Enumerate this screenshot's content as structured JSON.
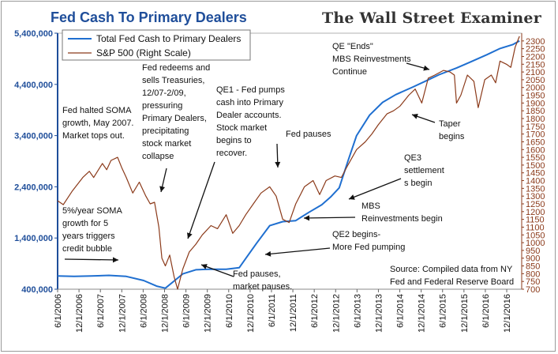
{
  "title": "Fed Cash To Primary Dealers",
  "brand": "The Wall Street Examiner",
  "chart_data": {
    "type": "line",
    "legend": {
      "placement": "top-left"
    },
    "colors": {
      "fed": "#1f6fd0",
      "spx": "#8b3a1a",
      "left_axis": "#1f4e9a",
      "right_axis": "#8b3a1a"
    },
    "x_range": [
      2006.42,
      2017.1
    ],
    "x_ticks": [
      "6/1/2006",
      "12/1/2006",
      "6/1/2007",
      "12/1/2007",
      "6/1/2008",
      "12/1/2008",
      "6/1/2009",
      "12/1/2009",
      "6/1/2010",
      "12/1/2010",
      "6/1/2011",
      "12/1/2011",
      "6/1/2012",
      "12/1/2012",
      "6/1/2013",
      "12/1/2013",
      "6/1/2014",
      "12/1/2014",
      "6/1/2015",
      "12/1/2015",
      "6/1/2016",
      "12/1/2016"
    ],
    "y_left": {
      "min": 400000,
      "max": 5400000,
      "ticks": [
        "400,000",
        "1,400,000",
        "2,400,000",
        "3,400,000",
        "4,400,000",
        "5,400,000"
      ]
    },
    "y_right": {
      "min": 700,
      "max": 2350,
      "ticks": [
        "700",
        "750",
        "800",
        "850",
        "900",
        "950",
        "1000",
        "1050",
        "1100",
        "1150",
        "1200",
        "1250",
        "1300",
        "1350",
        "1400",
        "1450",
        "1500",
        "1550",
        "1600",
        "1650",
        "1700",
        "1750",
        "1800",
        "1850",
        "1900",
        "1950",
        "2000",
        "2050",
        "2100",
        "2150",
        "2200",
        "2250",
        "2300"
      ]
    },
    "series": [
      {
        "name": "Total Fed Cash to Primary Dealers",
        "axis": "left",
        "points": [
          [
            2006.42,
            660000
          ],
          [
            2006.8,
            650000
          ],
          [
            2007.2,
            660000
          ],
          [
            2007.6,
            670000
          ],
          [
            2008.0,
            650000
          ],
          [
            2008.4,
            570000
          ],
          [
            2008.7,
            460000
          ],
          [
            2008.9,
            420000
          ],
          [
            2009.1,
            560000
          ],
          [
            2009.3,
            700000
          ],
          [
            2009.6,
            780000
          ],
          [
            2009.9,
            790000
          ],
          [
            2010.3,
            790000
          ],
          [
            2010.6,
            820000
          ],
          [
            2010.75,
            1000000
          ],
          [
            2011.0,
            1300000
          ],
          [
            2011.3,
            1640000
          ],
          [
            2011.6,
            1720000
          ],
          [
            2011.9,
            1740000
          ],
          [
            2012.2,
            1900000
          ],
          [
            2012.5,
            2050000
          ],
          [
            2012.7,
            2200000
          ],
          [
            2012.9,
            2380000
          ],
          [
            2013.1,
            2900000
          ],
          [
            2013.3,
            3400000
          ],
          [
            2013.6,
            3800000
          ],
          [
            2013.9,
            4050000
          ],
          [
            2014.2,
            4200000
          ],
          [
            2014.6,
            4350000
          ],
          [
            2014.9,
            4470000
          ],
          [
            2015.2,
            4590000
          ],
          [
            2015.6,
            4720000
          ],
          [
            2015.9,
            4830000
          ],
          [
            2016.3,
            4980000
          ],
          [
            2016.6,
            5100000
          ],
          [
            2016.9,
            5180000
          ],
          [
            2017.05,
            5250000
          ]
        ]
      },
      {
        "name": "S&P 500 (Right Scale)",
        "axis": "right",
        "points": [
          [
            2006.42,
            1270
          ],
          [
            2006.55,
            1245
          ],
          [
            2006.75,
            1330
          ],
          [
            2007.0,
            1420
          ],
          [
            2007.15,
            1460
          ],
          [
            2007.25,
            1420
          ],
          [
            2007.45,
            1510
          ],
          [
            2007.55,
            1470
          ],
          [
            2007.65,
            1530
          ],
          [
            2007.8,
            1550
          ],
          [
            2007.9,
            1480
          ],
          [
            2008.0,
            1420
          ],
          [
            2008.15,
            1320
          ],
          [
            2008.3,
            1390
          ],
          [
            2008.45,
            1300
          ],
          [
            2008.55,
            1250
          ],
          [
            2008.65,
            1260
          ],
          [
            2008.75,
            1100
          ],
          [
            2008.82,
            900
          ],
          [
            2008.9,
            850
          ],
          [
            2009.0,
            920
          ],
          [
            2009.1,
            780
          ],
          [
            2009.18,
            700
          ],
          [
            2009.3,
            830
          ],
          [
            2009.45,
            940
          ],
          [
            2009.6,
            990
          ],
          [
            2009.75,
            1050
          ],
          [
            2009.95,
            1110
          ],
          [
            2010.1,
            1090
          ],
          [
            2010.3,
            1180
          ],
          [
            2010.45,
            1060
          ],
          [
            2010.6,
            1110
          ],
          [
            2010.75,
            1180
          ],
          [
            2010.95,
            1260
          ],
          [
            2011.1,
            1320
          ],
          [
            2011.3,
            1360
          ],
          [
            2011.45,
            1300
          ],
          [
            2011.6,
            1150
          ],
          [
            2011.75,
            1130
          ],
          [
            2011.9,
            1250
          ],
          [
            2012.1,
            1360
          ],
          [
            2012.3,
            1400
          ],
          [
            2012.45,
            1310
          ],
          [
            2012.6,
            1400
          ],
          [
            2012.8,
            1430
          ],
          [
            2012.95,
            1420
          ],
          [
            2013.1,
            1500
          ],
          [
            2013.3,
            1600
          ],
          [
            2013.5,
            1650
          ],
          [
            2013.65,
            1700
          ],
          [
            2013.8,
            1760
          ],
          [
            2014.0,
            1830
          ],
          [
            2014.15,
            1850
          ],
          [
            2014.3,
            1880
          ],
          [
            2014.5,
            1950
          ],
          [
            2014.65,
            1990
          ],
          [
            2014.8,
            1900
          ],
          [
            2014.95,
            2060
          ],
          [
            2015.1,
            2080
          ],
          [
            2015.3,
            2110
          ],
          [
            2015.45,
            2100
          ],
          [
            2015.55,
            2080
          ],
          [
            2015.6,
            1900
          ],
          [
            2015.7,
            1950
          ],
          [
            2015.85,
            2080
          ],
          [
            2016.0,
            2040
          ],
          [
            2016.1,
            1870
          ],
          [
            2016.25,
            2050
          ],
          [
            2016.4,
            2080
          ],
          [
            2016.5,
            2030
          ],
          [
            2016.6,
            2170
          ],
          [
            2016.75,
            2150
          ],
          [
            2016.85,
            2130
          ],
          [
            2016.95,
            2260
          ],
          [
            2017.05,
            2330
          ]
        ]
      }
    ],
    "annotations": [
      "Fed halted SOMA growth, May 2007. Market tops out.",
      "Fed redeems and sells Treasuries, 12/07-2/09, pressuring Primary Dealers, precipitating stock market collapse",
      "QE1 - Fed pumps cash into Primary Dealer accounts. Stock market begins to recover.",
      "Fed pauses",
      "QE \"Ends\" MBS Reinvestments Continue",
      "Taper begins",
      "QE3 settlements begin",
      "MBS Reinvestments begin",
      "QE2 begins- More Fed pumping",
      "5%/year SOMA growth for 5 years triggers credit bubble",
      "Fed pauses, market pauses.",
      "Source: Compiled data from NY Fed and Federal Reserve Board"
    ]
  }
}
